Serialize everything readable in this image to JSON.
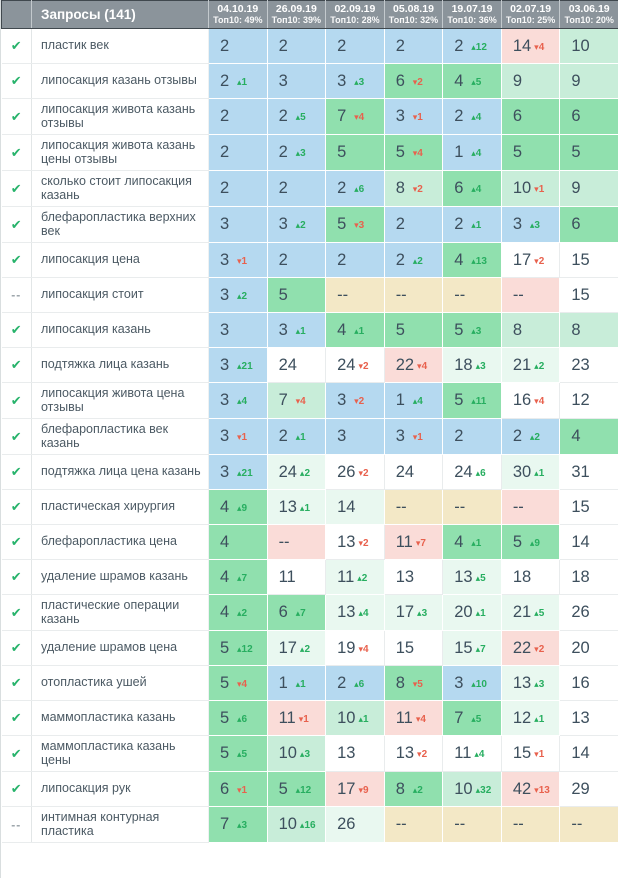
{
  "header": {
    "query_col_label": "Запросы (141)",
    "columns": [
      {
        "date": "04.10.19",
        "top10": "Топ10: 49%"
      },
      {
        "date": "26.09.19",
        "top10": "Топ10: 39%"
      },
      {
        "date": "02.09.19",
        "top10": "Топ10: 28%"
      },
      {
        "date": "05.08.19",
        "top10": "Топ10: 32%"
      },
      {
        "date": "19.07.19",
        "top10": "Топ10: 36%"
      },
      {
        "date": "02.07.19",
        "top10": "Топ10: 25%"
      },
      {
        "date": "03.06.19",
        "top10": "Топ10: 20%"
      }
    ]
  },
  "icons": {
    "checked": "✔",
    "paused": "--",
    "up": "▴",
    "down": "▾"
  },
  "colors": {
    "top3_blue": "#b5d9f0",
    "green": "#90e0ae",
    "mint": "#c8edd9",
    "tint": "#e9f8f0",
    "pink": "#fadcd8",
    "tan": "#f3e8c6",
    "header_gray": "#8b949b",
    "delta_up": "#27ae60",
    "delta_down": "#e8614d",
    "check_green": "#27b36b"
  },
  "rows": [
    {
      "query": "пластик век",
      "status": "checked",
      "cells": [
        {
          "v": "2",
          "bg": "B"
        },
        {
          "v": "2",
          "bg": "B"
        },
        {
          "v": "2",
          "bg": "B"
        },
        {
          "v": "2",
          "bg": "B"
        },
        {
          "v": "2",
          "d": 12,
          "bg": "B"
        },
        {
          "v": "14",
          "d": -4,
          "bg": "P"
        },
        {
          "v": "10",
          "bg": "M"
        }
      ]
    },
    {
      "query": "липосакция казань отзывы",
      "status": "checked",
      "cells": [
        {
          "v": "2",
          "d": 1,
          "bg": "B"
        },
        {
          "v": "3",
          "bg": "B"
        },
        {
          "v": "3",
          "d": 3,
          "bg": "B"
        },
        {
          "v": "6",
          "d": -2,
          "bg": "G"
        },
        {
          "v": "4",
          "d": 5,
          "bg": "G"
        },
        {
          "v": "9",
          "bg": "M"
        },
        {
          "v": "9",
          "bg": "M"
        }
      ]
    },
    {
      "query": "липосакция живота казань отзывы",
      "status": "checked",
      "cells": [
        {
          "v": "2",
          "bg": "B"
        },
        {
          "v": "2",
          "d": 5,
          "bg": "B"
        },
        {
          "v": "7",
          "d": -4,
          "bg": "G"
        },
        {
          "v": "3",
          "d": -1,
          "bg": "B"
        },
        {
          "v": "2",
          "d": 4,
          "bg": "B"
        },
        {
          "v": "6",
          "bg": "G"
        },
        {
          "v": "6",
          "bg": "G"
        }
      ]
    },
    {
      "query": "липосакция живота казань цены отзывы",
      "status": "checked",
      "cells": [
        {
          "v": "2",
          "bg": "B"
        },
        {
          "v": "2",
          "d": 3,
          "bg": "B"
        },
        {
          "v": "5",
          "bg": "G"
        },
        {
          "v": "5",
          "d": -4,
          "bg": "G"
        },
        {
          "v": "1",
          "d": 4,
          "bg": "B"
        },
        {
          "v": "5",
          "bg": "G"
        },
        {
          "v": "5",
          "bg": "G"
        }
      ]
    },
    {
      "query": "сколько стоит липосакция казань",
      "status": "checked",
      "cells": [
        {
          "v": "2",
          "bg": "B"
        },
        {
          "v": "2",
          "bg": "B"
        },
        {
          "v": "2",
          "d": 6,
          "bg": "B"
        },
        {
          "v": "8",
          "d": -2,
          "bg": "M"
        },
        {
          "v": "6",
          "d": 4,
          "bg": "G"
        },
        {
          "v": "10",
          "d": -1,
          "bg": "M"
        },
        {
          "v": "9",
          "bg": "M"
        }
      ]
    },
    {
      "query": "блефаропластика верхних век",
      "status": "checked",
      "cells": [
        {
          "v": "3",
          "bg": "B"
        },
        {
          "v": "3",
          "d": 2,
          "bg": "B"
        },
        {
          "v": "5",
          "d": -3,
          "bg": "G"
        },
        {
          "v": "2",
          "bg": "B"
        },
        {
          "v": "2",
          "d": 1,
          "bg": "B"
        },
        {
          "v": "3",
          "d": 3,
          "bg": "B"
        },
        {
          "v": "6",
          "bg": "G"
        }
      ]
    },
    {
      "query": "липосакция цена",
      "status": "checked",
      "cells": [
        {
          "v": "3",
          "d": -1,
          "bg": "B"
        },
        {
          "v": "2",
          "bg": "B"
        },
        {
          "v": "2",
          "bg": "B"
        },
        {
          "v": "2",
          "d": 2,
          "bg": "B"
        },
        {
          "v": "4",
          "d": 13,
          "bg": "G"
        },
        {
          "v": "17",
          "d": -2,
          "bg": "W"
        },
        {
          "v": "15",
          "bg": "W"
        }
      ]
    },
    {
      "query": "липосакция стоит",
      "status": "paused",
      "cells": [
        {
          "v": "3",
          "d": 2,
          "bg": "B"
        },
        {
          "v": "5",
          "bg": "G"
        },
        {
          "v": "--",
          "bg": "K"
        },
        {
          "v": "--",
          "bg": "K"
        },
        {
          "v": "--",
          "bg": "K"
        },
        {
          "v": "--",
          "bg": "P"
        },
        {
          "v": "15",
          "bg": "W"
        }
      ]
    },
    {
      "query": "липосакция казань",
      "status": "checked",
      "cells": [
        {
          "v": "3",
          "bg": "B"
        },
        {
          "v": "3",
          "d": 1,
          "bg": "B"
        },
        {
          "v": "4",
          "d": 1,
          "bg": "G"
        },
        {
          "v": "5",
          "bg": "G"
        },
        {
          "v": "5",
          "d": 3,
          "bg": "G"
        },
        {
          "v": "8",
          "bg": "M"
        },
        {
          "v": "8",
          "bg": "M"
        }
      ]
    },
    {
      "query": "подтяжка лица казань",
      "status": "checked",
      "cells": [
        {
          "v": "3",
          "d": 21,
          "bg": "B"
        },
        {
          "v": "24",
          "bg": "W"
        },
        {
          "v": "24",
          "d": -2,
          "bg": "W"
        },
        {
          "v": "22",
          "d": -4,
          "bg": "P"
        },
        {
          "v": "18",
          "d": 3,
          "bg": "T"
        },
        {
          "v": "21",
          "d": 2,
          "bg": "T"
        },
        {
          "v": "23",
          "bg": "W"
        }
      ]
    },
    {
      "query": "липосакция живота цена отзывы",
      "status": "checked",
      "cells": [
        {
          "v": "3",
          "d": 4,
          "bg": "B"
        },
        {
          "v": "7",
          "d": -4,
          "bg": "M"
        },
        {
          "v": "3",
          "d": -2,
          "bg": "B"
        },
        {
          "v": "1",
          "d": 4,
          "bg": "B"
        },
        {
          "v": "5",
          "d": 11,
          "bg": "G"
        },
        {
          "v": "16",
          "d": -4,
          "bg": "W"
        },
        {
          "v": "12",
          "bg": "W"
        }
      ]
    },
    {
      "query": "блефаропластика век казань",
      "status": "checked",
      "cells": [
        {
          "v": "3",
          "d": -1,
          "bg": "B"
        },
        {
          "v": "2",
          "d": 1,
          "bg": "B"
        },
        {
          "v": "3",
          "bg": "B"
        },
        {
          "v": "3",
          "d": -1,
          "bg": "B"
        },
        {
          "v": "2",
          "bg": "B"
        },
        {
          "v": "2",
          "d": 2,
          "bg": "B"
        },
        {
          "v": "4",
          "bg": "G"
        }
      ]
    },
    {
      "query": "подтяжка лица цена казань",
      "status": "checked",
      "cells": [
        {
          "v": "3",
          "d": 21,
          "bg": "B"
        },
        {
          "v": "24",
          "d": 2,
          "bg": "T"
        },
        {
          "v": "26",
          "d": -2,
          "bg": "W"
        },
        {
          "v": "24",
          "bg": "W"
        },
        {
          "v": "24",
          "d": 6,
          "bg": "W"
        },
        {
          "v": "30",
          "d": 1,
          "bg": "T"
        },
        {
          "v": "31",
          "bg": "W"
        }
      ]
    },
    {
      "query": "пластическая хирургия",
      "status": "checked",
      "cells": [
        {
          "v": "4",
          "d": 9,
          "bg": "G"
        },
        {
          "v": "13",
          "d": 1,
          "bg": "T"
        },
        {
          "v": "14",
          "bg": "T"
        },
        {
          "v": "--",
          "bg": "K"
        },
        {
          "v": "--",
          "bg": "K"
        },
        {
          "v": "--",
          "bg": "P"
        },
        {
          "v": "15",
          "bg": "W"
        }
      ]
    },
    {
      "query": "блефаропластика цена",
      "status": "checked",
      "cells": [
        {
          "v": "4",
          "bg": "G"
        },
        {
          "v": "--",
          "bg": "P"
        },
        {
          "v": "13",
          "d": -2,
          "bg": "W"
        },
        {
          "v": "11",
          "d": -7,
          "bg": "P"
        },
        {
          "v": "4",
          "d": 1,
          "bg": "G"
        },
        {
          "v": "5",
          "d": 9,
          "bg": "G"
        },
        {
          "v": "14",
          "bg": "W"
        }
      ]
    },
    {
      "query": "удаление шрамов казань",
      "status": "checked",
      "cells": [
        {
          "v": "4",
          "d": 7,
          "bg": "G"
        },
        {
          "v": "11",
          "bg": "W"
        },
        {
          "v": "11",
          "d": 2,
          "bg": "T"
        },
        {
          "v": "13",
          "bg": "W"
        },
        {
          "v": "13",
          "d": 5,
          "bg": "T"
        },
        {
          "v": "18",
          "bg": "W"
        },
        {
          "v": "18",
          "bg": "W"
        }
      ]
    },
    {
      "query": "пластические операции казань",
      "status": "checked",
      "cells": [
        {
          "v": "4",
          "d": 2,
          "bg": "G"
        },
        {
          "v": "6",
          "d": 7,
          "bg": "G"
        },
        {
          "v": "13",
          "d": 4,
          "bg": "T"
        },
        {
          "v": "17",
          "d": 3,
          "bg": "T"
        },
        {
          "v": "20",
          "d": 1,
          "bg": "T"
        },
        {
          "v": "21",
          "d": 5,
          "bg": "T"
        },
        {
          "v": "26",
          "bg": "W"
        }
      ]
    },
    {
      "query": "удаление шрамов цена",
      "status": "checked",
      "cells": [
        {
          "v": "5",
          "d": 12,
          "bg": "G"
        },
        {
          "v": "17",
          "d": 2,
          "bg": "T"
        },
        {
          "v": "19",
          "d": -4,
          "bg": "W"
        },
        {
          "v": "15",
          "bg": "W"
        },
        {
          "v": "15",
          "d": 7,
          "bg": "T"
        },
        {
          "v": "22",
          "d": -2,
          "bg": "P"
        },
        {
          "v": "20",
          "bg": "W"
        }
      ]
    },
    {
      "query": "отопластика ушей",
      "status": "checked",
      "cells": [
        {
          "v": "5",
          "d": -4,
          "bg": "G"
        },
        {
          "v": "1",
          "d": 1,
          "bg": "B"
        },
        {
          "v": "2",
          "d": 6,
          "bg": "B"
        },
        {
          "v": "8",
          "d": -5,
          "bg": "G"
        },
        {
          "v": "3",
          "d": 10,
          "bg": "B"
        },
        {
          "v": "13",
          "d": 3,
          "bg": "T"
        },
        {
          "v": "16",
          "bg": "W"
        }
      ]
    },
    {
      "query": "маммопластика казань",
      "status": "checked",
      "cells": [
        {
          "v": "5",
          "d": 6,
          "bg": "G"
        },
        {
          "v": "11",
          "d": -1,
          "bg": "P"
        },
        {
          "v": "10",
          "d": 1,
          "bg": "M"
        },
        {
          "v": "11",
          "d": -4,
          "bg": "P"
        },
        {
          "v": "7",
          "d": 5,
          "bg": "G"
        },
        {
          "v": "12",
          "d": 1,
          "bg": "T"
        },
        {
          "v": "13",
          "bg": "W"
        }
      ]
    },
    {
      "query": "маммопластика казань цены",
      "status": "checked",
      "cells": [
        {
          "v": "5",
          "d": 5,
          "bg": "G"
        },
        {
          "v": "10",
          "d": 3,
          "bg": "M"
        },
        {
          "v": "13",
          "bg": "W"
        },
        {
          "v": "13",
          "d": -2,
          "bg": "W"
        },
        {
          "v": "11",
          "d": 4,
          "bg": "W"
        },
        {
          "v": "15",
          "d": -1,
          "bg": "W"
        },
        {
          "v": "14",
          "bg": "W"
        }
      ]
    },
    {
      "query": "липосакция рук",
      "status": "checked",
      "cells": [
        {
          "v": "6",
          "d": -1,
          "bg": "G"
        },
        {
          "v": "5",
          "d": 12,
          "bg": "G"
        },
        {
          "v": "17",
          "d": -9,
          "bg": "P"
        },
        {
          "v": "8",
          "d": 2,
          "bg": "G"
        },
        {
          "v": "10",
          "d": 32,
          "bg": "M"
        },
        {
          "v": "42",
          "d": -13,
          "bg": "P"
        },
        {
          "v": "29",
          "bg": "W"
        }
      ]
    },
    {
      "query": "интимная контурная пластика",
      "status": "paused",
      "cells": [
        {
          "v": "7",
          "d": 3,
          "bg": "G"
        },
        {
          "v": "10",
          "d": 16,
          "bg": "M"
        },
        {
          "v": "26",
          "bg": "T"
        },
        {
          "v": "--",
          "bg": "K"
        },
        {
          "v": "--",
          "bg": "K"
        },
        {
          "v": "--",
          "bg": "K"
        },
        {
          "v": "--",
          "bg": "K"
        }
      ]
    }
  ]
}
